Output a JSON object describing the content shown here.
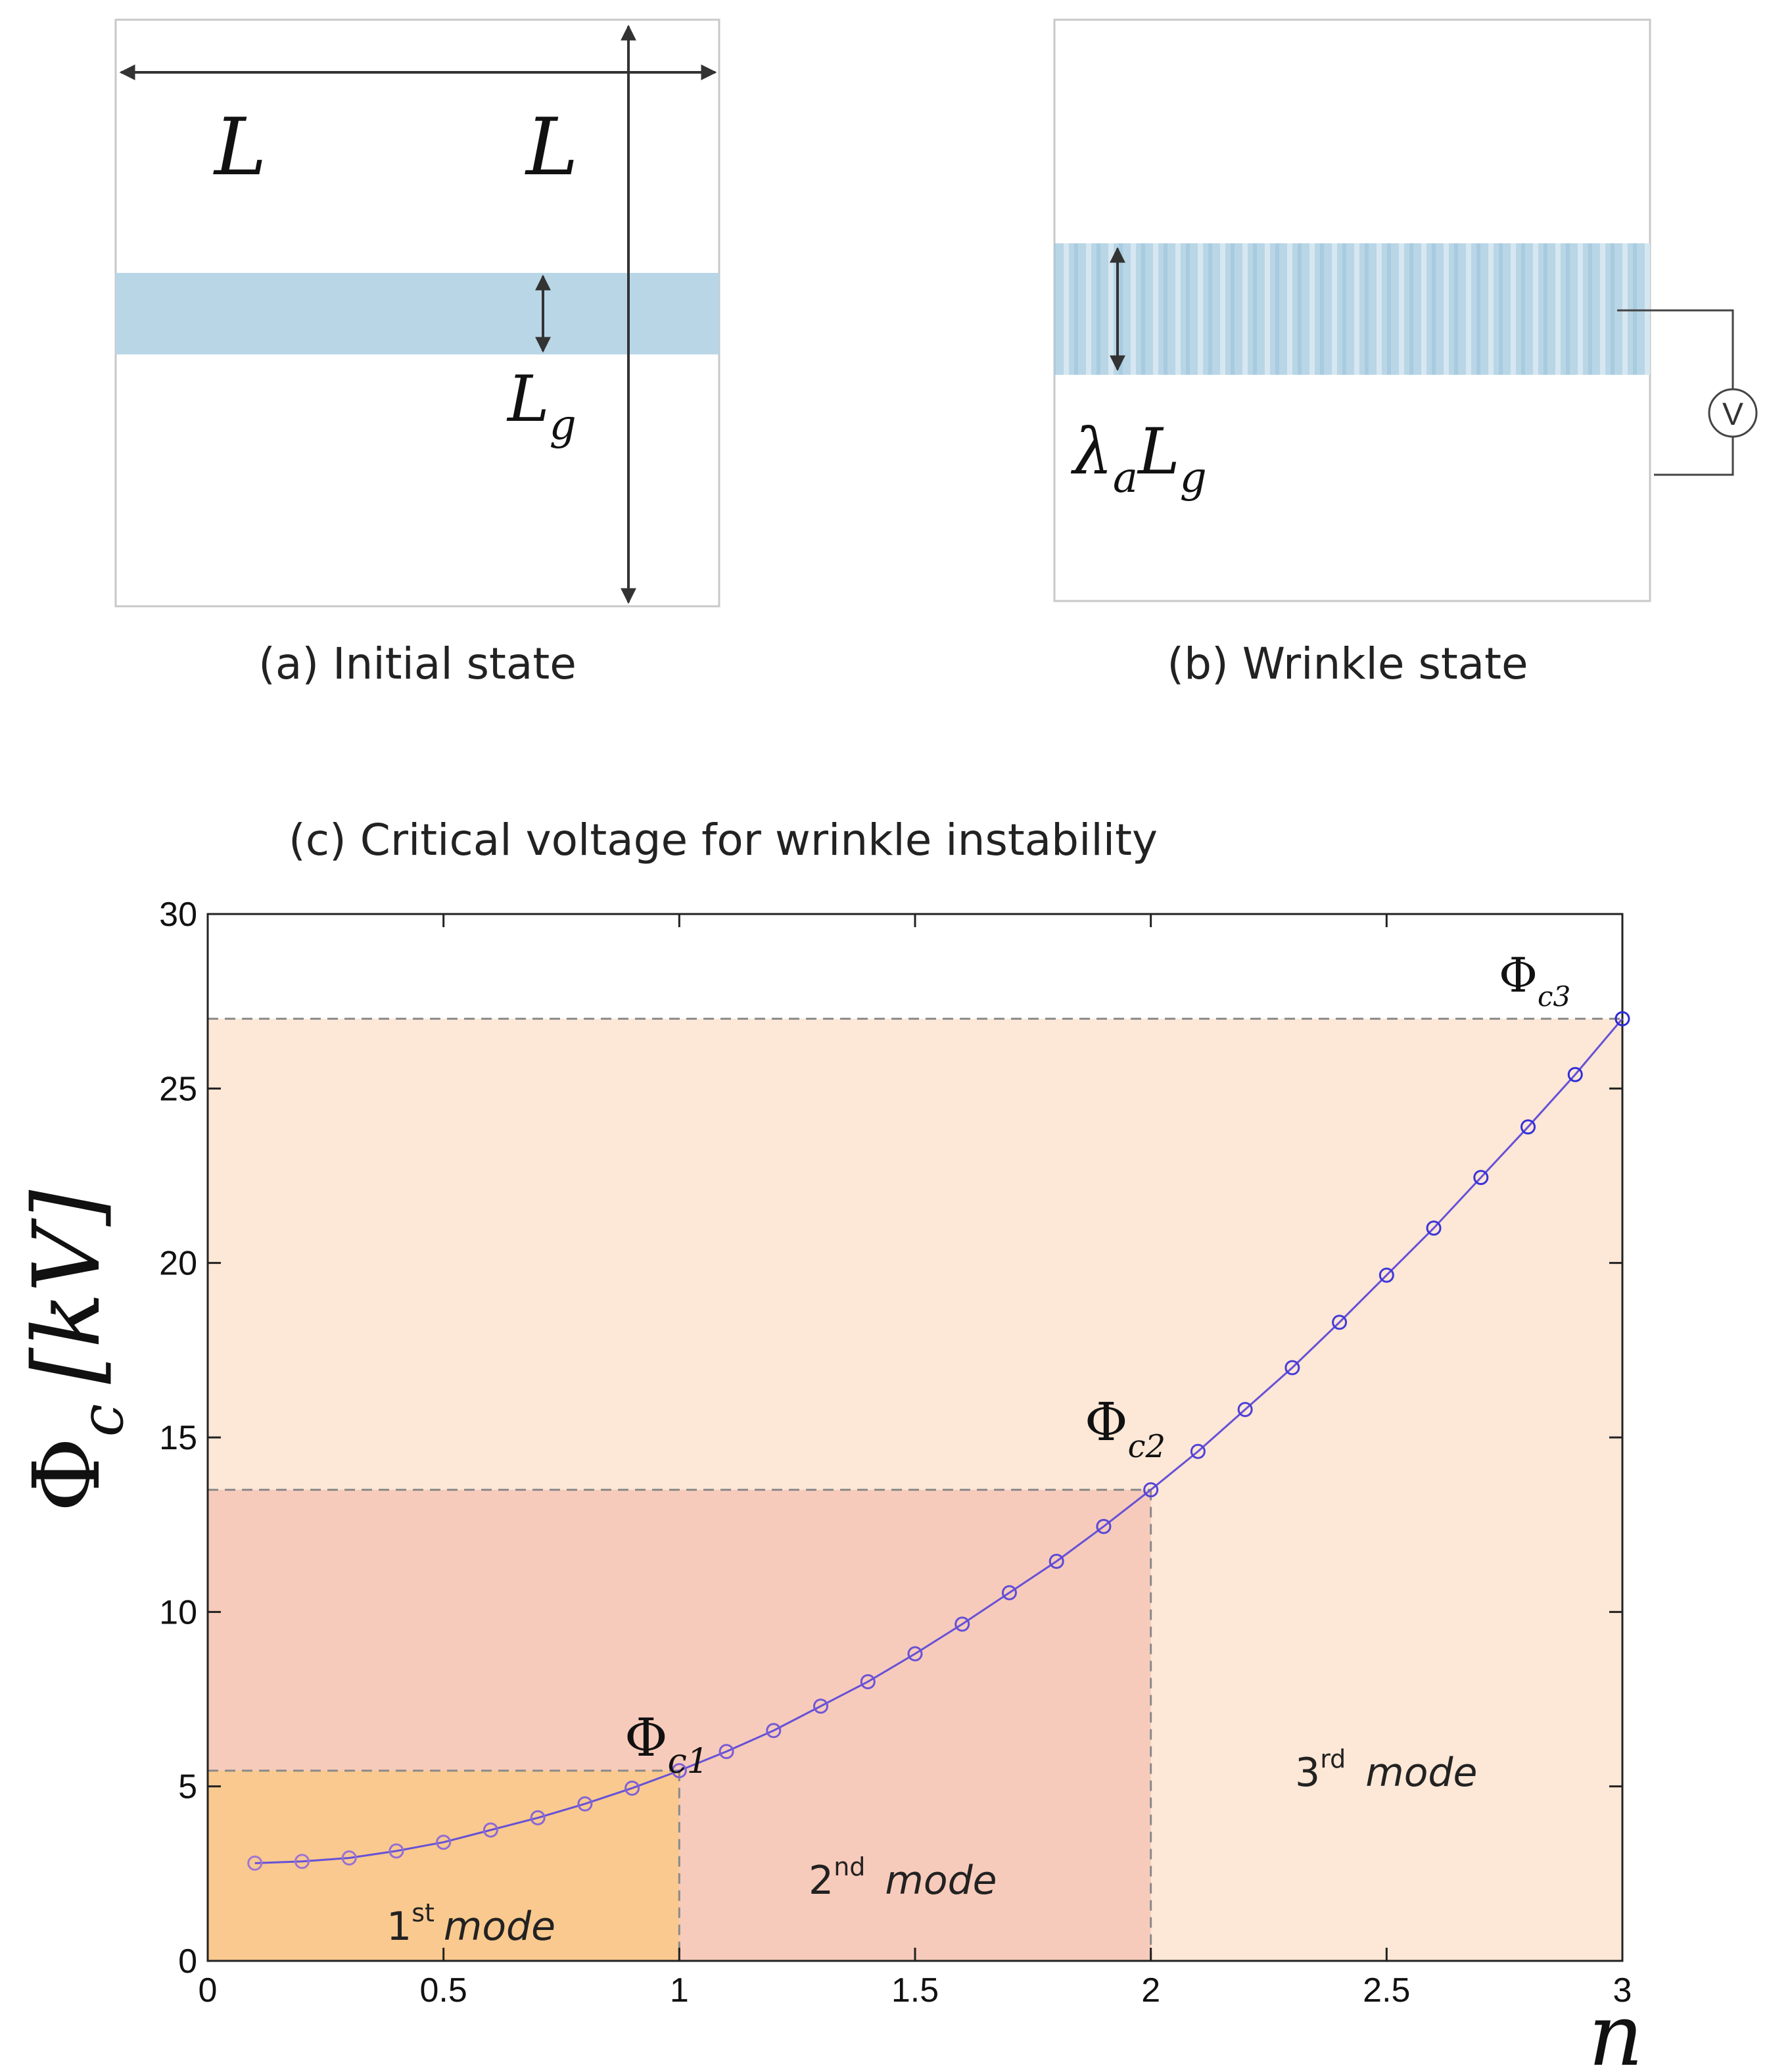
{
  "panel_a": {
    "caption": "(a) Initial state",
    "label_width": "L",
    "label_height": "L",
    "label_gap": "L",
    "label_gap_sub": "g"
  },
  "panel_b": {
    "caption": "(b) Wrinkle state",
    "label_stretch": "λ",
    "label_stretch_sub": "a",
    "label_gap": "L",
    "label_gap_sub": "g",
    "voltmeter": "V"
  },
  "panel_c": {
    "caption": "(c) Critical voltage for wrinkle instability",
    "ylabel_main": "Φ",
    "ylabel_sub": "c",
    "ylabel_unit": "[kV]",
    "xlabel": "n",
    "xticks": [
      "0",
      "0.5",
      "1",
      "1.5",
      "2",
      "2.5",
      "3"
    ],
    "yticks": [
      "0",
      "5",
      "10",
      "15",
      "20",
      "25",
      "30"
    ],
    "modes": [
      {
        "ord": "1",
        "sup": "st",
        "word": "mode"
      },
      {
        "ord": "2",
        "sup": "nd",
        "word": "mode"
      },
      {
        "ord": "3",
        "sup": "rd",
        "word": "mode"
      }
    ],
    "critical_labels": [
      {
        "main": "Φ",
        "sub": "c1"
      },
      {
        "main": "Φ",
        "sub": "c2"
      },
      {
        "main": "Φ",
        "sub": "c3"
      }
    ]
  },
  "colors": {
    "film": "#b9d6e6",
    "mode1": "#f9c98f",
    "mode2": "#f7cbbb",
    "mode3": "#fde7d6",
    "curve_start": "#a076d4",
    "curve_end": "#2b2bd9",
    "dashed": "#8a8a8a"
  },
  "chart_data": {
    "type": "line",
    "title": "(c) Critical voltage for wrinkle instability",
    "xlabel": "n",
    "ylabel": "Φc [kV]",
    "xlim": [
      0,
      3
    ],
    "ylim": [
      0,
      30
    ],
    "series": [
      {
        "name": "Φc",
        "x": [
          0.1,
          0.2,
          0.3,
          0.4,
          0.5,
          0.6,
          0.7,
          0.8,
          0.9,
          1.0,
          1.1,
          1.2,
          1.3,
          1.4,
          1.5,
          1.6,
          1.7,
          1.8,
          1.9,
          2.0,
          2.1,
          2.2,
          2.3,
          2.4,
          2.5,
          2.6,
          2.7,
          2.8,
          2.9,
          3.0
        ],
        "y": [
          2.8,
          2.85,
          2.95,
          3.15,
          3.4,
          3.75,
          4.1,
          4.5,
          4.95,
          5.45,
          6.0,
          6.6,
          7.3,
          8.0,
          8.8,
          9.65,
          10.55,
          11.45,
          12.45,
          13.5,
          14.6,
          15.8,
          17.0,
          18.3,
          19.65,
          21.0,
          22.45,
          23.9,
          25.4,
          27.0
        ]
      }
    ],
    "critical_points": [
      {
        "label": "Φc1",
        "n": 1,
        "value": 5.45
      },
      {
        "label": "Φc2",
        "n": 2,
        "value": 13.5
      },
      {
        "label": "Φc3",
        "n": 3,
        "value": 27.0
      }
    ],
    "regions": [
      {
        "label": "1st mode",
        "n_range": [
          0,
          1
        ],
        "upper": 5.45
      },
      {
        "label": "2nd mode",
        "n_range": [
          0,
          2
        ],
        "upper": 13.5
      },
      {
        "label": "3rd mode",
        "n_range": [
          0,
          3
        ],
        "upper": 27.0
      }
    ]
  }
}
